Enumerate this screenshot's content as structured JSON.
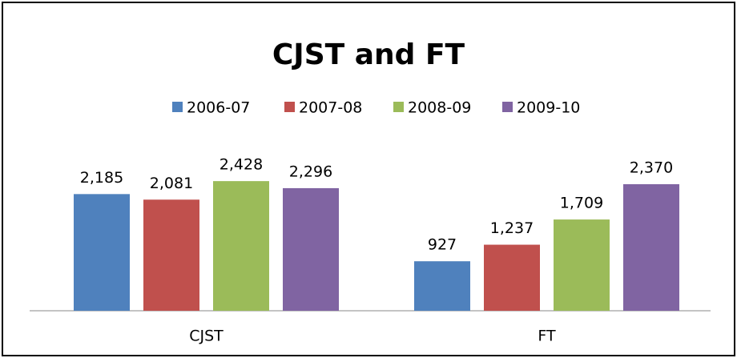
{
  "chart_data": {
    "type": "bar",
    "title": "CJST and FT",
    "categories": [
      "CJST",
      "FT"
    ],
    "series": [
      {
        "name": "2006-07",
        "color": "#4f81bd",
        "values": [
          2185,
          927
        ],
        "value_labels": [
          "2,185",
          "927"
        ]
      },
      {
        "name": "2007-08",
        "color": "#c0504d",
        "values": [
          2081,
          1237
        ],
        "value_labels": [
          "2,081",
          "1,237"
        ]
      },
      {
        "name": "2008-09",
        "color": "#9bbb59",
        "values": [
          2428,
          1709
        ],
        "value_labels": [
          "2,428",
          "1,709"
        ]
      },
      {
        "name": "2009-10",
        "color": "#8064a2",
        "values": [
          2296,
          2370
        ],
        "value_labels": [
          "2,296",
          "2,370"
        ]
      }
    ],
    "ylim": [
      0,
      3000
    ],
    "legend": "top"
  }
}
